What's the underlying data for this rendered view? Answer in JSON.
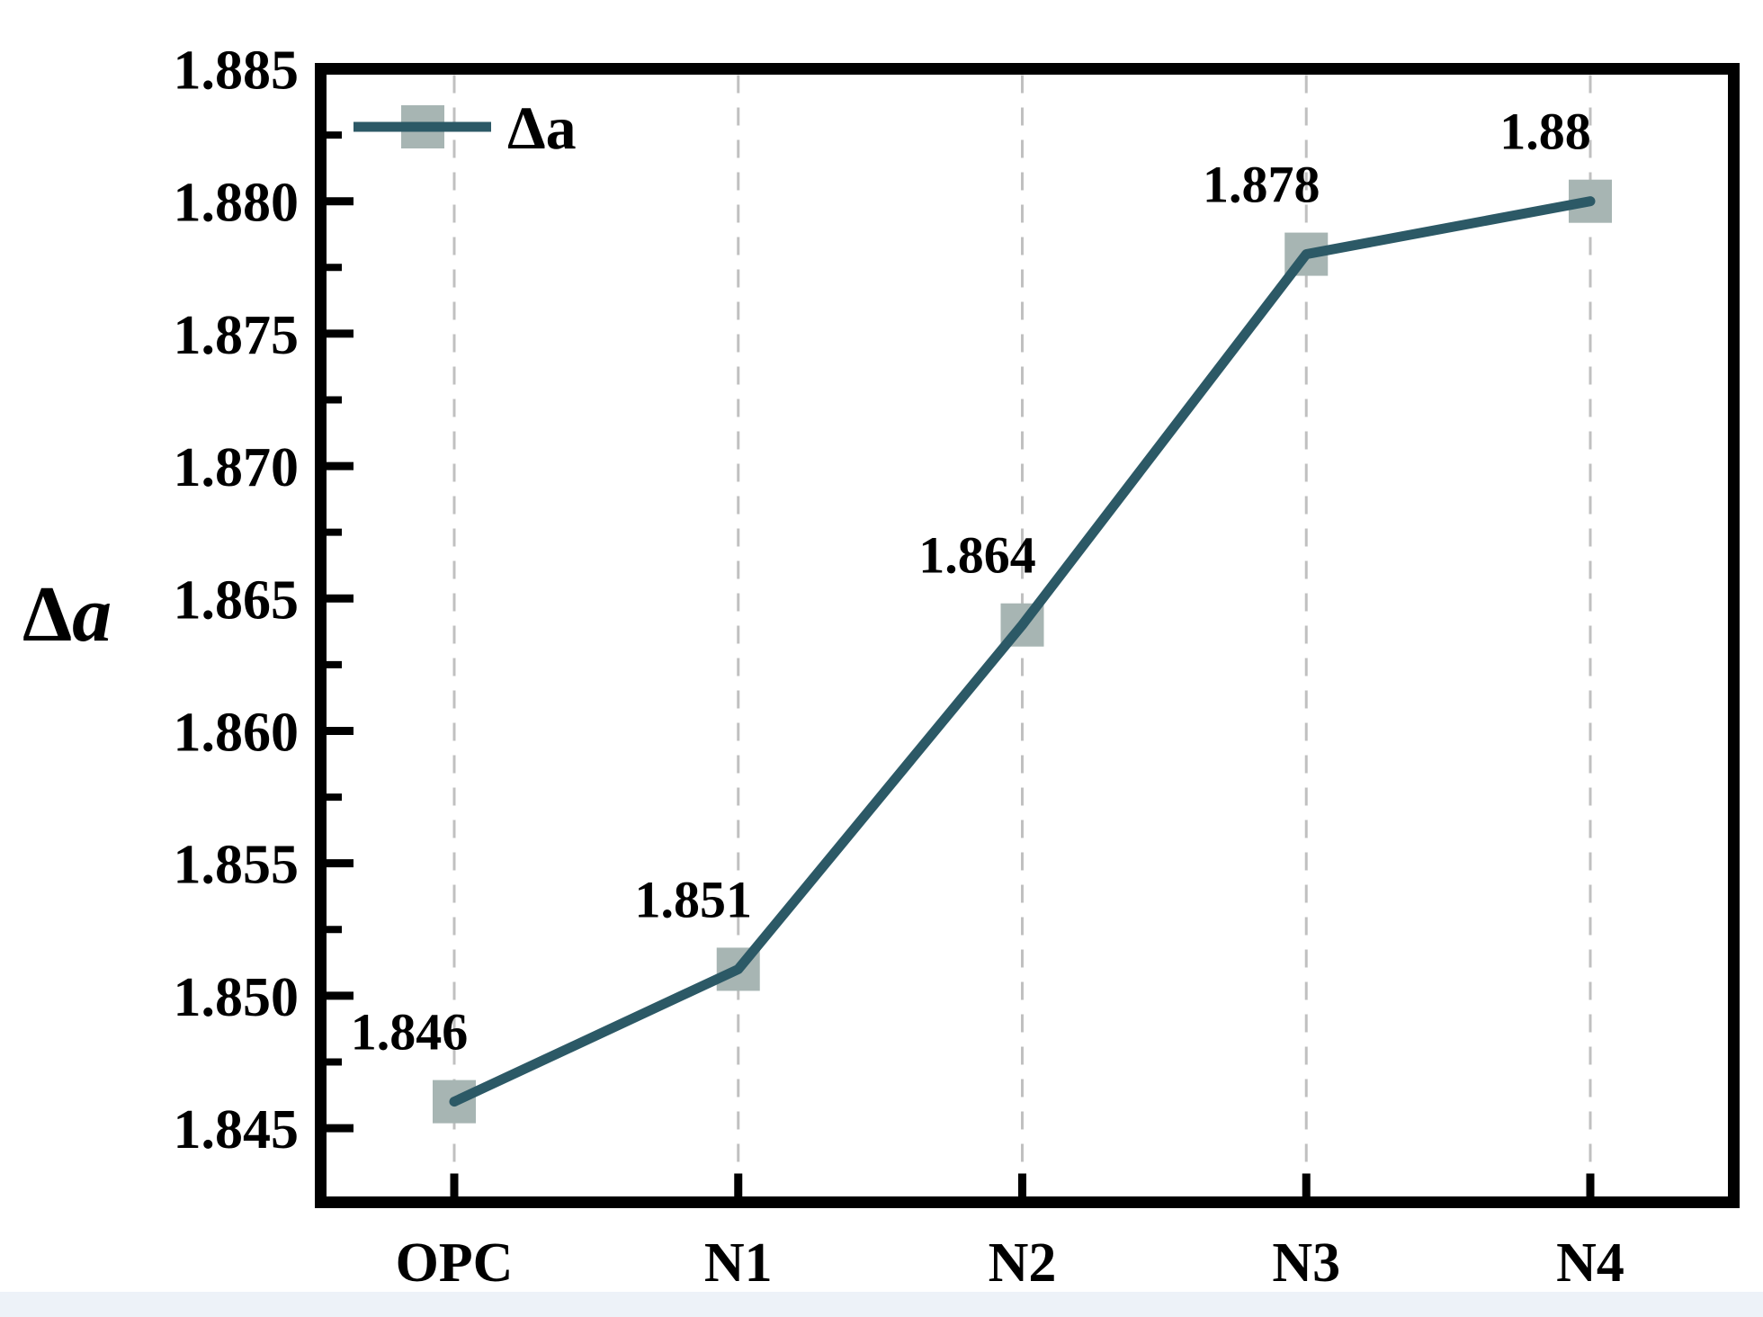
{
  "chart_data": {
    "type": "line",
    "title": "",
    "xlabel": "",
    "ylabel": "Δa",
    "categories": [
      "OPC",
      "N1",
      "N2",
      "N3",
      "N4"
    ],
    "series": [
      {
        "name": "Δa",
        "values": [
          1.846,
          1.851,
          1.864,
          1.878,
          1.88
        ],
        "point_labels": [
          "1.846",
          "1.851",
          "1.864",
          "1.878",
          "1.88"
        ]
      }
    ],
    "ylim": [
      1.8422,
      1.885
    ],
    "yticks": {
      "major_values": [
        1.885,
        1.88,
        1.875,
        1.87,
        1.865,
        1.86,
        1.855,
        1.85,
        1.845
      ],
      "major_labels": [
        "1.885",
        "1.880",
        "1.875",
        "1.870",
        "1.865",
        "1.860",
        "1.855",
        "1.850",
        "1.845"
      ],
      "minor_values": [
        1.8825,
        1.8775,
        1.8725,
        1.8675,
        1.8625,
        1.8575,
        1.8525,
        1.8475
      ]
    },
    "grid": {
      "vertical_dashed": true,
      "horizontal": false
    },
    "legend": {
      "position": "top-left",
      "label": "Δa"
    },
    "marker_shape": "square",
    "colors": {
      "line": "#2c5966",
      "marker": "#a7b5b3",
      "grid": "#c0c0c0",
      "axis": "#000000",
      "text": "#000000",
      "page_band": "#edf2f8"
    }
  }
}
